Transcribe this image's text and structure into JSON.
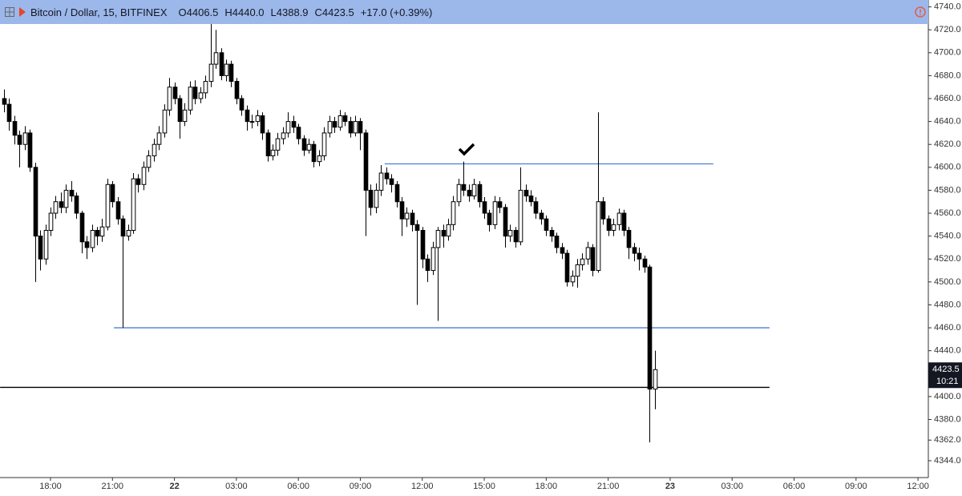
{
  "header": {
    "title": "Bitcoin / Dollar, 15, BITFINEX",
    "ohlc": [
      "O4406.5",
      "H4440.0",
      "L4388.9",
      "C4423.5",
      "+17.0 (+0.39%)"
    ]
  },
  "chart_data": {
    "type": "candlestick",
    "xlim": [
      15.555,
      60.5
    ],
    "xticks": [
      {
        "value": 18,
        "label": "18:00"
      },
      {
        "value": 21,
        "label": "21:00"
      },
      {
        "value": 24,
        "label": "22"
      },
      {
        "value": 27,
        "label": "03:00"
      },
      {
        "value": 30,
        "label": "06:00"
      },
      {
        "value": 33,
        "label": "09:00"
      },
      {
        "value": 36,
        "label": "12:00"
      },
      {
        "value": 39,
        "label": "15:00"
      },
      {
        "value": 42,
        "label": "18:00"
      },
      {
        "value": 45,
        "label": "21:00"
      },
      {
        "value": 48,
        "label": "23"
      },
      {
        "value": 51,
        "label": "03:00"
      },
      {
        "value": 54,
        "label": "06:00"
      },
      {
        "value": 57,
        "label": "09:00"
      },
      {
        "value": 60,
        "label": "12:00"
      }
    ],
    "ylim": [
      4330,
      4746
    ],
    "yticks": [
      {
        "value": 4740,
        "label": "4740.0"
      },
      {
        "value": 4720,
        "label": "4720.0"
      },
      {
        "value": 4700,
        "label": "4700.0"
      },
      {
        "value": 4680,
        "label": "4680.0"
      },
      {
        "value": 4660,
        "label": "4660.0"
      },
      {
        "value": 4640,
        "label": "4640.0"
      },
      {
        "value": 4620,
        "label": "4620.0"
      },
      {
        "value": 4600,
        "label": "4600.0"
      },
      {
        "value": 4580,
        "label": "4580.0"
      },
      {
        "value": 4560,
        "label": "4560.0"
      },
      {
        "value": 4540,
        "label": "4540.0"
      },
      {
        "value": 4520,
        "label": "4520.0"
      },
      {
        "value": 4500,
        "label": "4500.0"
      },
      {
        "value": 4480,
        "label": "4480.0"
      },
      {
        "value": 4460,
        "label": "4460.0"
      },
      {
        "value": 4440,
        "label": "4440.0"
      },
      {
        "value": 4400,
        "label": "4400.0"
      },
      {
        "value": 4380,
        "label": "4380.0"
      },
      {
        "value": 4362,
        "label": "4362.0"
      },
      {
        "value": 4344,
        "label": "4344.0"
      }
    ],
    "up_color": "#ffffff",
    "down_color": "#000000",
    "countdown": "10:21",
    "x": [
      15.75,
      16,
      16.25,
      16.5,
      16.75,
      17,
      17.25,
      17.5,
      17.75,
      18,
      18.25,
      18.5,
      18.75,
      19,
      19.25,
      19.5,
      19.75,
      20,
      20.25,
      20.5,
      20.75,
      21,
      21.25,
      21.5,
      21.75,
      22,
      22.25,
      22.5,
      22.75,
      23,
      23.25,
      23.5,
      23.75,
      24,
      24.25,
      24.5,
      24.75,
      25,
      25.25,
      25.5,
      25.75,
      26,
      26.25,
      26.5,
      26.75,
      27,
      27.25,
      27.5,
      27.75,
      28,
      28.25,
      28.5,
      28.75,
      29,
      29.25,
      29.5,
      29.75,
      30,
      30.25,
      30.5,
      30.75,
      31,
      31.25,
      31.5,
      31.75,
      32,
      32.25,
      32.5,
      32.75,
      33,
      33.25,
      33.5,
      33.75,
      34,
      34.25,
      34.5,
      34.75,
      35,
      35.25,
      35.5,
      35.75,
      36,
      36.25,
      36.5,
      36.75,
      37,
      37.25,
      37.5,
      37.75,
      38,
      38.25,
      38.5,
      38.75,
      39,
      39.25,
      39.5,
      39.75,
      40,
      40.25,
      40.5,
      40.75,
      41,
      41.25,
      41.5,
      41.75,
      42,
      42.25,
      42.5,
      42.75,
      43,
      43.25,
      43.5,
      43.75,
      44,
      44.25,
      44.5,
      44.75,
      45,
      45.25,
      45.5,
      45.75,
      46,
      46.25,
      46.5,
      46.75,
      47,
      47.25
    ],
    "open": [
      4660,
      4655,
      4640,
      4628,
      4620,
      4630,
      4600,
      4540,
      4520,
      4545,
      4560,
      4570,
      4565,
      4580,
      4575,
      4560,
      4535,
      4530,
      4545,
      4540,
      4548,
      4585,
      4570,
      4555,
      4540,
      4545,
      4590,
      4585,
      4600,
      4610,
      4620,
      4630,
      4650,
      4670,
      4660,
      4640,
      4650,
      4670,
      4660,
      4665,
      4675,
      4690,
      4700,
      4680,
      4690,
      4675,
      4660,
      4650,
      4640,
      4640,
      4645,
      4630,
      4610,
      4615,
      4625,
      4630,
      4640,
      4635,
      4625,
      4615,
      4620,
      4605,
      4610,
      4630,
      4640,
      4635,
      4645,
      4640,
      4630,
      4640,
      4630,
      4580,
      4565,
      4580,
      4595,
      4590,
      4585,
      4570,
      4555,
      4560,
      4550,
      4545,
      4520,
      4510,
      4530,
      4545,
      4540,
      4550,
      4570,
      4585,
      4580,
      4575,
      4585,
      4570,
      4560,
      4550,
      4570,
      4565,
      4540,
      4545,
      4535,
      4580,
      4575,
      4570,
      4560,
      4555,
      4545,
      4540,
      4530,
      4525,
      4500,
      4505,
      4515,
      4520,
      4530,
      4510,
      4570,
      4555,
      4545,
      4550,
      4560,
      4545,
      4530,
      4525,
      4520,
      4513,
      4406.5
    ],
    "high": [
      4668,
      4660,
      4645,
      4632,
      4636,
      4633,
      4604,
      4545,
      4550,
      4565,
      4575,
      4578,
      4585,
      4588,
      4578,
      4562,
      4540,
      4550,
      4548,
      4555,
      4590,
      4588,
      4574,
      4558,
      4550,
      4595,
      4594,
      4605,
      4615,
      4625,
      4636,
      4655,
      4678,
      4674,
      4663,
      4656,
      4675,
      4676,
      4670,
      4680,
      4725,
      4720,
      4704,
      4694,
      4693,
      4678,
      4663,
      4654,
      4646,
      4650,
      4648,
      4633,
      4620,
      4630,
      4635,
      4648,
      4645,
      4638,
      4628,
      4625,
      4623,
      4615,
      4635,
      4645,
      4644,
      4650,
      4648,
      4644,
      4645,
      4643,
      4633,
      4585,
      4586,
      4602,
      4600,
      4594,
      4588,
      4574,
      4565,
      4563,
      4554,
      4548,
      4524,
      4535,
      4548,
      4550,
      4555,
      4575,
      4590,
      4605,
      4585,
      4590,
      4588,
      4574,
      4563,
      4575,
      4574,
      4568,
      4550,
      4548,
      4600,
      4585,
      4580,
      4574,
      4563,
      4558,
      4548,
      4543,
      4534,
      4528,
      4510,
      4520,
      4525,
      4535,
      4533,
      4648,
      4574,
      4558,
      4555,
      4564,
      4563,
      4548,
      4534,
      4530,
      4523,
      4515,
      4440
    ],
    "low": [
      4648,
      4632,
      4620,
      4600,
      4615,
      4596,
      4500,
      4510,
      4515,
      4540,
      4555,
      4560,
      4560,
      4570,
      4555,
      4525,
      4520,
      4526,
      4532,
      4535,
      4545,
      4565,
      4550,
      4460,
      4536,
      4542,
      4578,
      4580,
      4596,
      4605,
      4615,
      4626,
      4645,
      4655,
      4625,
      4636,
      4646,
      4655,
      4656,
      4660,
      4670,
      4686,
      4676,
      4675,
      4670,
      4655,
      4645,
      4632,
      4634,
      4636,
      4624,
      4605,
      4606,
      4610,
      4620,
      4626,
      4630,
      4620,
      4610,
      4612,
      4600,
      4601,
      4606,
      4626,
      4630,
      4632,
      4636,
      4626,
      4627,
      4615,
      4540,
      4558,
      4560,
      4575,
      4585,
      4578,
      4565,
      4540,
      4548,
      4544,
      4480,
      4512,
      4500,
      4506,
      4466,
      4530,
      4536,
      4545,
      4566,
      4575,
      4570,
      4572,
      4565,
      4555,
      4544,
      4546,
      4560,
      4530,
      4535,
      4530,
      4532,
      4570,
      4566,
      4555,
      4550,
      4540,
      4535,
      4525,
      4520,
      4496,
      4496,
      4495,
      4510,
      4515,
      4505,
      4508,
      4550,
      4540,
      4540,
      4545,
      4540,
      4520,
      4518,
      4510,
      4508,
      4360,
      4388.9
    ],
    "close": [
      4655,
      4640,
      4628,
      4620,
      4630,
      4600,
      4540,
      4520,
      4545,
      4560,
      4570,
      4565,
      4580,
      4575,
      4560,
      4535,
      4530,
      4545,
      4540,
      4548,
      4585,
      4570,
      4555,
      4540,
      4545,
      4590,
      4585,
      4600,
      4610,
      4620,
      4630,
      4650,
      4670,
      4660,
      4640,
      4650,
      4670,
      4660,
      4665,
      4675,
      4690,
      4700,
      4680,
      4690,
      4675,
      4660,
      4650,
      4640,
      4640,
      4645,
      4630,
      4610,
      4615,
      4625,
      4630,
      4640,
      4635,
      4625,
      4615,
      4620,
      4605,
      4610,
      4630,
      4640,
      4635,
      4645,
      4640,
      4630,
      4640,
      4630,
      4580,
      4565,
      4580,
      4595,
      4590,
      4585,
      4570,
      4555,
      4560,
      4550,
      4545,
      4520,
      4510,
      4530,
      4545,
      4540,
      4550,
      4570,
      4585,
      4580,
      4575,
      4585,
      4570,
      4560,
      4550,
      4570,
      4565,
      4540,
      4545,
      4535,
      4580,
      4575,
      4570,
      4560,
      4555,
      4545,
      4540,
      4530,
      4525,
      4500,
      4505,
      4515,
      4520,
      4530,
      4510,
      4570,
      4555,
      4545,
      4550,
      4560,
      4545,
      4530,
      4525,
      4520,
      4513,
      4406.5,
      4423.5
    ],
    "levels": [
      {
        "value": 4603,
        "from": 34.18,
        "to": 50.09,
        "color": "#4a7fd4"
      },
      {
        "value": 4460,
        "from": 21.07,
        "to": 52.81,
        "color": "#4a7fd4"
      },
      {
        "value": 4408,
        "from": 15.56,
        "to": 52.81,
        "color": "#000000"
      }
    ]
  }
}
